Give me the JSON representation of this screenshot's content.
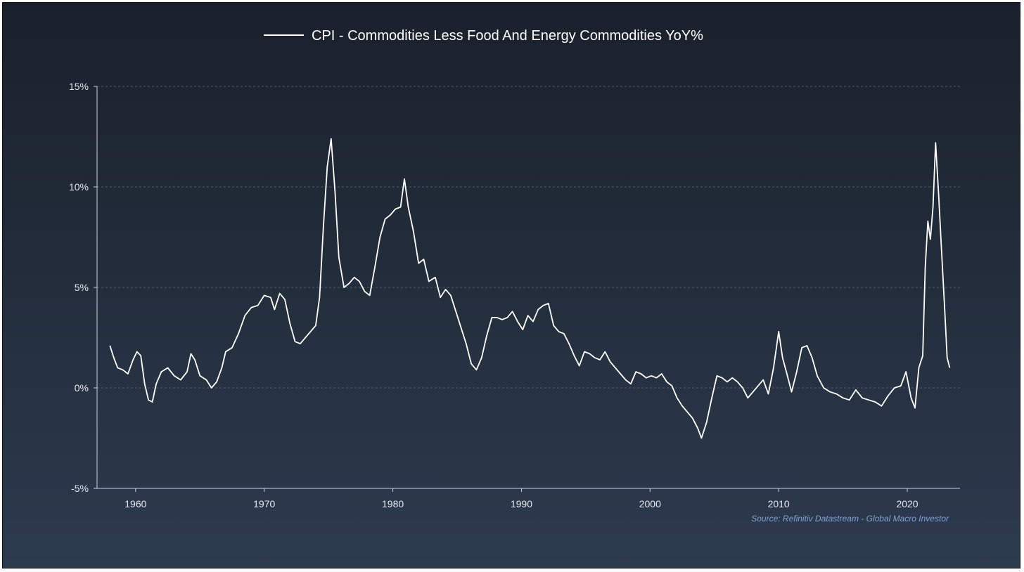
{
  "chart_data": {
    "type": "line",
    "title": "",
    "xlabel": "",
    "ylabel": "",
    "legend": {
      "placement": "top-center"
    },
    "series": [
      {
        "name": "CPI - Commodities Less Food And Energy Commodities YoY%",
        "color": "#ffffff",
        "points": [
          [
            1958.0,
            2.1
          ],
          [
            1958.3,
            1.5
          ],
          [
            1958.6,
            1.0
          ],
          [
            1959.0,
            0.9
          ],
          [
            1959.4,
            0.7
          ],
          [
            1959.8,
            1.4
          ],
          [
            1960.1,
            1.8
          ],
          [
            1960.4,
            1.6
          ],
          [
            1960.7,
            0.2
          ],
          [
            1961.0,
            -0.6
          ],
          [
            1961.3,
            -0.7
          ],
          [
            1961.6,
            0.2
          ],
          [
            1962.0,
            0.8
          ],
          [
            1962.5,
            1.0
          ],
          [
            1963.0,
            0.6
          ],
          [
            1963.5,
            0.4
          ],
          [
            1964.0,
            0.8
          ],
          [
            1964.3,
            1.7
          ],
          [
            1964.6,
            1.4
          ],
          [
            1965.0,
            0.6
          ],
          [
            1965.5,
            0.4
          ],
          [
            1965.9,
            0.0
          ],
          [
            1966.3,
            0.3
          ],
          [
            1966.7,
            1.0
          ],
          [
            1967.0,
            1.8
          ],
          [
            1967.5,
            2.0
          ],
          [
            1968.0,
            2.7
          ],
          [
            1968.5,
            3.6
          ],
          [
            1969.0,
            4.0
          ],
          [
            1969.5,
            4.1
          ],
          [
            1970.0,
            4.6
          ],
          [
            1970.5,
            4.5
          ],
          [
            1970.8,
            3.9
          ],
          [
            1971.2,
            4.7
          ],
          [
            1971.6,
            4.4
          ],
          [
            1972.0,
            3.2
          ],
          [
            1972.4,
            2.3
          ],
          [
            1972.8,
            2.2
          ],
          [
            1973.2,
            2.5
          ],
          [
            1973.6,
            2.8
          ],
          [
            1974.0,
            3.1
          ],
          [
            1974.3,
            4.5
          ],
          [
            1974.6,
            8.0
          ],
          [
            1974.9,
            11.0
          ],
          [
            1975.2,
            12.4
          ],
          [
            1975.5,
            9.8
          ],
          [
            1975.8,
            6.5
          ],
          [
            1976.2,
            5.0
          ],
          [
            1976.6,
            5.2
          ],
          [
            1977.0,
            5.5
          ],
          [
            1977.4,
            5.3
          ],
          [
            1977.8,
            4.8
          ],
          [
            1978.2,
            4.6
          ],
          [
            1978.6,
            6.0
          ],
          [
            1979.0,
            7.5
          ],
          [
            1979.4,
            8.4
          ],
          [
            1979.8,
            8.6
          ],
          [
            1980.2,
            8.9
          ],
          [
            1980.6,
            9.0
          ],
          [
            1980.9,
            10.4
          ],
          [
            1981.2,
            9.0
          ],
          [
            1981.6,
            7.8
          ],
          [
            1982.0,
            6.2
          ],
          [
            1982.4,
            6.4
          ],
          [
            1982.8,
            5.3
          ],
          [
            1983.3,
            5.5
          ],
          [
            1983.7,
            4.5
          ],
          [
            1984.1,
            4.9
          ],
          [
            1984.5,
            4.6
          ],
          [
            1984.9,
            3.8
          ],
          [
            1985.3,
            3.0
          ],
          [
            1985.7,
            2.2
          ],
          [
            1986.1,
            1.2
          ],
          [
            1986.5,
            0.9
          ],
          [
            1986.9,
            1.5
          ],
          [
            1987.3,
            2.6
          ],
          [
            1987.7,
            3.5
          ],
          [
            1988.1,
            3.5
          ],
          [
            1988.5,
            3.4
          ],
          [
            1988.9,
            3.5
          ],
          [
            1989.3,
            3.8
          ],
          [
            1989.7,
            3.3
          ],
          [
            1990.1,
            2.9
          ],
          [
            1990.5,
            3.6
          ],
          [
            1990.9,
            3.3
          ],
          [
            1991.3,
            3.9
          ],
          [
            1991.7,
            4.1
          ],
          [
            1992.1,
            4.2
          ],
          [
            1992.5,
            3.1
          ],
          [
            1992.9,
            2.8
          ],
          [
            1993.3,
            2.7
          ],
          [
            1993.7,
            2.2
          ],
          [
            1994.1,
            1.6
          ],
          [
            1994.5,
            1.1
          ],
          [
            1994.9,
            1.8
          ],
          [
            1995.3,
            1.7
          ],
          [
            1995.7,
            1.5
          ],
          [
            1996.1,
            1.4
          ],
          [
            1996.5,
            1.8
          ],
          [
            1996.9,
            1.3
          ],
          [
            1997.3,
            1.0
          ],
          [
            1997.7,
            0.7
          ],
          [
            1998.1,
            0.4
          ],
          [
            1998.5,
            0.2
          ],
          [
            1998.9,
            0.8
          ],
          [
            1999.3,
            0.7
          ],
          [
            1999.7,
            0.5
          ],
          [
            2000.1,
            0.6
          ],
          [
            2000.5,
            0.5
          ],
          [
            2000.9,
            0.7
          ],
          [
            2001.3,
            0.3
          ],
          [
            2001.7,
            0.1
          ],
          [
            2002.1,
            -0.5
          ],
          [
            2002.5,
            -0.9
          ],
          [
            2002.9,
            -1.2
          ],
          [
            2003.3,
            -1.5
          ],
          [
            2003.7,
            -2.0
          ],
          [
            2004.0,
            -2.5
          ],
          [
            2004.4,
            -1.7
          ],
          [
            2004.8,
            -0.5
          ],
          [
            2005.2,
            0.6
          ],
          [
            2005.6,
            0.5
          ],
          [
            2006.0,
            0.3
          ],
          [
            2006.4,
            0.5
          ],
          [
            2006.8,
            0.3
          ],
          [
            2007.2,
            0.0
          ],
          [
            2007.6,
            -0.5
          ],
          [
            2008.0,
            -0.2
          ],
          [
            2008.4,
            0.1
          ],
          [
            2008.8,
            0.4
          ],
          [
            2009.2,
            -0.3
          ],
          [
            2009.6,
            1.0
          ],
          [
            2010.0,
            2.8
          ],
          [
            2010.3,
            1.5
          ],
          [
            2010.6,
            0.8
          ],
          [
            2011.0,
            -0.2
          ],
          [
            2011.4,
            0.8
          ],
          [
            2011.8,
            2.0
          ],
          [
            2012.2,
            2.1
          ],
          [
            2012.6,
            1.5
          ],
          [
            2013.0,
            0.6
          ],
          [
            2013.5,
            0.0
          ],
          [
            2014.0,
            -0.2
          ],
          [
            2014.5,
            -0.3
          ],
          [
            2015.0,
            -0.5
          ],
          [
            2015.5,
            -0.6
          ],
          [
            2016.0,
            -0.1
          ],
          [
            2016.5,
            -0.5
          ],
          [
            2017.0,
            -0.6
          ],
          [
            2017.5,
            -0.7
          ],
          [
            2018.0,
            -0.9
          ],
          [
            2018.5,
            -0.4
          ],
          [
            2019.0,
            0.0
          ],
          [
            2019.5,
            0.1
          ],
          [
            2019.9,
            0.8
          ],
          [
            2020.3,
            -0.5
          ],
          [
            2020.6,
            -1.0
          ],
          [
            2020.9,
            1.0
          ],
          [
            2021.2,
            1.6
          ],
          [
            2021.4,
            6.0
          ],
          [
            2021.6,
            8.3
          ],
          [
            2021.8,
            7.4
          ],
          [
            2022.0,
            9.0
          ],
          [
            2022.2,
            12.2
          ],
          [
            2022.45,
            9.5
          ],
          [
            2022.65,
            7.0
          ],
          [
            2022.9,
            4.0
          ],
          [
            2023.1,
            1.5
          ],
          [
            2023.3,
            1.0
          ]
        ]
      }
    ],
    "x_ticks": [
      {
        "value": 1960,
        "label": "1960"
      },
      {
        "value": 1970,
        "label": "1970"
      },
      {
        "value": 1980,
        "label": "1980"
      },
      {
        "value": 1990,
        "label": "1990"
      },
      {
        "value": 2000,
        "label": "2000"
      },
      {
        "value": 2010,
        "label": "2010"
      },
      {
        "value": 2020,
        "label": "2020"
      }
    ],
    "y_ticks": [
      {
        "value": 15,
        "label": "15%"
      },
      {
        "value": 10,
        "label": "10%"
      },
      {
        "value": 5,
        "label": "5%"
      },
      {
        "value": 0,
        "label": "0%"
      },
      {
        "value": -5,
        "label": "-5%"
      }
    ],
    "xlim": [
      1957.0,
      2024.1
    ],
    "ylim": [
      -5,
      15
    ],
    "grid": {
      "horizontal": true,
      "vertical": false,
      "color": "#4a5a70"
    },
    "source": "Source: Refinitiv Datastream - Global Macro Investor"
  }
}
